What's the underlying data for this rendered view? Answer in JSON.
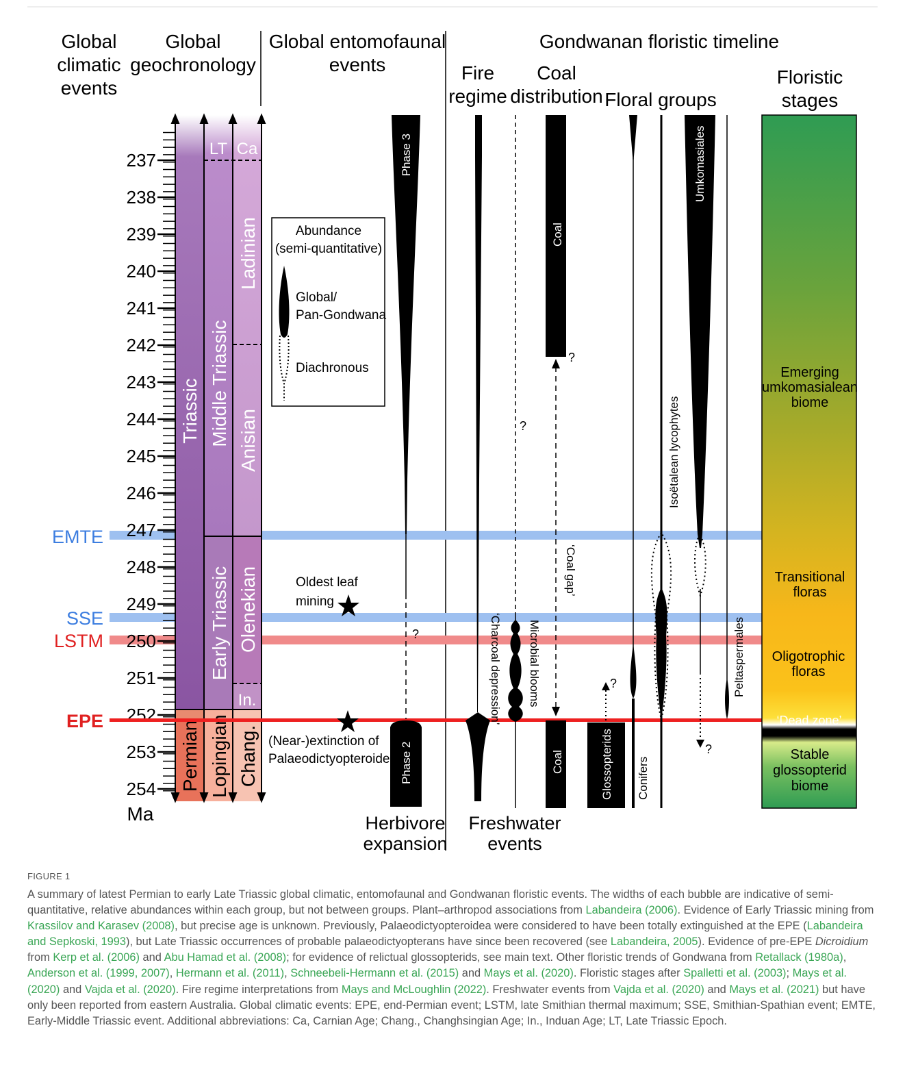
{
  "column_headers": {
    "climatic": [
      "Global",
      "climatic",
      "events"
    ],
    "geochronology": [
      "Global",
      "geochronology"
    ],
    "entomofaunal": [
      "Global entomofaunal",
      "events"
    ],
    "gondwanan": "Gondwanan floristic timeline",
    "fire": [
      "Fire",
      "regime"
    ],
    "coal": [
      "Coal",
      "distribution"
    ],
    "floral_groups": "Floral groups",
    "floristic_stages": [
      "Floristic",
      "stages"
    ]
  },
  "axis": {
    "unit": "Ma",
    "ticks": [
      "237",
      "238",
      "239",
      "240",
      "241",
      "242",
      "243",
      "244",
      "245",
      "246",
      "247",
      "248",
      "249",
      "250",
      "251",
      "252",
      "253",
      "254"
    ]
  },
  "events": [
    {
      "label": "EMTE",
      "age_ma": 247.2,
      "color": "#9ec0f0",
      "label_color": "#3d7ee0"
    },
    {
      "label": "SSE",
      "age_ma": 249.4,
      "color": "#9ec0f0",
      "label_color": "#3d7ee0"
    },
    {
      "label": "LSTM",
      "age_ma": 250.0,
      "color": "#f08a8a",
      "label_color": "#e02020"
    },
    {
      "label": "EPE",
      "age_ma": 252.3,
      "color": "#ee2020",
      "label_color": "#e02020"
    }
  ],
  "geochronology": {
    "period": {
      "triassic": "Triassic",
      "permian": "Permian"
    },
    "epoch": {
      "lt": "LT",
      "middle": "Middle Triassic",
      "early": "Early Triassic",
      "lopingian": "Lopingian"
    },
    "stage": {
      "ca": "Ca",
      "ladinian": "Ladinian",
      "anisian": "Anisian",
      "olenekian": "Olenekian",
      "induan": "In.",
      "chang": "Chang."
    }
  },
  "legend": {
    "title": [
      "Abundance",
      "(semi-quantitative)"
    ],
    "global": [
      "Global/",
      "Pan-Gondwana"
    ],
    "diachronous": "Diachronous"
  },
  "entomofauna": {
    "phase3": "Phase 3",
    "phase2": "Phase 2",
    "leaf_mining": [
      "Oldest leaf",
      "mining"
    ],
    "extinction": [
      "(Near-)extinction of",
      "Palaeodictyopteroidea"
    ],
    "herbivore": [
      "Herbivore",
      "expansion"
    ],
    "question": "?"
  },
  "fire": {
    "charcoal": "‘Charcoal depression’"
  },
  "freshwater": {
    "microbial": "Microbial blooms",
    "label": [
      "Freshwater",
      "events"
    ],
    "question": "?"
  },
  "coal": {
    "coal_top": "Coal",
    "coal_bottom": "Coal",
    "gap": "‘Coal gap’",
    "question": "?"
  },
  "floral": {
    "glossopterids": "Glossopterids",
    "conifers": "Conifers",
    "isoetalean": "Isoëtalean lycophytes",
    "umkomasiales": "Umkomasiales",
    "peltaspermales": "Peltaspermales",
    "question_glosso": "?",
    "question_umko": "?"
  },
  "stages": {
    "emerging": [
      "Emerging",
      "umkomasialean",
      "biome"
    ],
    "transitional": [
      "Transitional",
      "floras"
    ],
    "oligotrophic": [
      "Oligotrophic",
      "floras"
    ],
    "dead_zone": "‘Dead zone’",
    "stable": [
      "Stable",
      "glossopterid",
      "biome"
    ]
  },
  "caption": {
    "figure_label": "FIGURE 1",
    "parts": [
      {
        "t": "A summary of latest Permian to early Late Triassic global climatic, entomofaunal and Gondwanan floristic events. The widths of each bubble are indicative of semi-quantitative, relative abundances within each group, but not between groups. Plant–arthropod associations from ",
        "s": "n"
      },
      {
        "t": "Labandeira (2006)",
        "s": "ref"
      },
      {
        "t": ". Evidence of Early Triassic mining from ",
        "s": "n"
      },
      {
        "t": "Krassilov and Karasev (2008)",
        "s": "ref"
      },
      {
        "t": ", but precise age is unknown. Previously, Palaeodictyopteroidea were considered to have been totally extinguished at the EPE (",
        "s": "n"
      },
      {
        "t": "Labandeira and Sepkoski, 1993",
        "s": "ref"
      },
      {
        "t": "), but Late Triassic occurrences of probable palaeodictyopterans have since been recovered (see ",
        "s": "n"
      },
      {
        "t": "Labandeira, 2005",
        "s": "ref"
      },
      {
        "t": "). Evidence of pre-EPE ",
        "s": "n"
      },
      {
        "t": "Dicroidium",
        "s": "i"
      },
      {
        "t": " from ",
        "s": "n"
      },
      {
        "t": "Kerp et al. (2006)",
        "s": "ref"
      },
      {
        "t": " and ",
        "s": "n"
      },
      {
        "t": "Abu Hamad et al. (2008)",
        "s": "ref"
      },
      {
        "t": "; for evidence of relictual glossopterids, see main text. Other floristic trends of Gondwana from ",
        "s": "n"
      },
      {
        "t": "Retallack (1980a)",
        "s": "ref"
      },
      {
        "t": ", ",
        "s": "n"
      },
      {
        "t": "Anderson et al. (1999, 2007)",
        "s": "ref"
      },
      {
        "t": ", ",
        "s": "n"
      },
      {
        "t": "Hermann et al. (2011)",
        "s": "ref"
      },
      {
        "t": ", ",
        "s": "n"
      },
      {
        "t": "Schneebeli-Hermann et al. (2015)",
        "s": "ref"
      },
      {
        "t": " and ",
        "s": "n"
      },
      {
        "t": "Mays et al. (2020)",
        "s": "ref"
      },
      {
        "t": ". Floristic stages after ",
        "s": "n"
      },
      {
        "t": "Spalletti et al. (2003)",
        "s": "ref"
      },
      {
        "t": "; ",
        "s": "n"
      },
      {
        "t": "Mays et al. (2020)",
        "s": "ref"
      },
      {
        "t": " and ",
        "s": "n"
      },
      {
        "t": "Vajda et al. (2020)",
        "s": "ref"
      },
      {
        "t": ". Fire regime interpretations from ",
        "s": "n"
      },
      {
        "t": "Mays and McLoughlin (2022)",
        "s": "ref"
      },
      {
        "t": ". Freshwater events from ",
        "s": "n"
      },
      {
        "t": "Vajda et al. (2020)",
        "s": "ref"
      },
      {
        "t": " and ",
        "s": "n"
      },
      {
        "t": "Mays et al. (2021)",
        "s": "ref"
      },
      {
        "t": " but have only been reported from eastern Australia. Global climatic events: EPE, end-Permian event; LSTM, late Smithian thermal maximum; SSE, Smithian-Spathian event; EMTE, Early-Middle Triassic event. Additional abbreviations: Ca, Carnian Age; Chang., Changhsingian Age; In., Induan Age; LT, Late Triassic Epoch.",
        "s": "n"
      }
    ]
  }
}
